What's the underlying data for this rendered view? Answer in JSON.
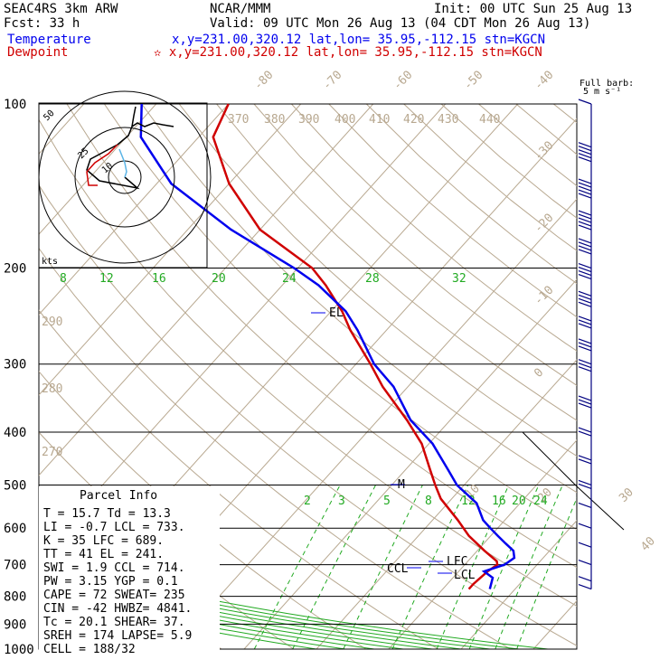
{
  "header": {
    "model": "SEAC4RS  3km ARW",
    "org": "NCAR/MMM",
    "init": "Init: 00 UTC Sun 25 Aug 13",
    "fcst": "Fcst:   33 h",
    "valid": "Valid: 09 UTC Mon 26 Aug 13 (04 CDT Mon 26 Aug 13)",
    "temp_label": "Temperature",
    "temp_loc": "x,y=231.00,320.12   lat,lon= 35.95,-112.15  stn=KGCN",
    "dew_label": "Dewpoint",
    "dew_loc": "✫ x,y=231.00,320.12   lat,lon= 35.95,-112.15  stn=KGCN"
  },
  "colors": {
    "temperature": "#d00000",
    "dewpoint": "#0000ee",
    "blue_text": "#0000ee",
    "red_text": "#d00000",
    "isotherm": "#b8a890",
    "mixing_ratio": "#22aa22",
    "barb": "#000080"
  },
  "barb_key": {
    "title": "Full barb:",
    "units": "5 m s⁻¹"
  },
  "hodograph": {
    "rings": [
      "10",
      "25",
      "50"
    ],
    "units": "kts"
  },
  "parcel_info": {
    "title": "Parcel Info",
    "rows": [
      "T  =    15.7 Td =  13.3",
      "LI =    -0.7 LCL =  733.",
      "K  =      35 LFC =  689.",
      "TT =      41 EL  =  241.",
      "SWI =    1.9 CCL =  714.",
      "PW =    3.15 YGP =   0.1",
      "CAPE =    72 SWEAT=  235",
      "CIN =    -42 HWBZ= 4841.",
      "Tc =    20.1 SHEAR=  37.",
      "SREH =   174 LAPSE=  5.9",
      "CELL = 188/32"
    ]
  },
  "chart_data": {
    "type": "line",
    "title": "",
    "ylabel": "",
    "xlabel": "",
    "pressure_levels": [
      "100",
      "200",
      "300",
      "400",
      "500",
      "600",
      "700",
      "800",
      "900",
      "1000"
    ],
    "isotherm_labels": [
      "-80",
      "-70",
      "-60",
      "-50",
      "-40",
      "-30",
      "-20",
      "-10",
      "0",
      "10",
      "20",
      "30",
      "40"
    ],
    "theta_labels": [
      "370",
      "380",
      "390",
      "400",
      "410",
      "420",
      "430",
      "440",
      "290",
      "280",
      "270"
    ],
    "mixing_ratio_labels_upper": [
      "8",
      "12",
      "16",
      "20",
      "24",
      "28",
      "32"
    ],
    "mixing_ratio_labels_lower": [
      "2",
      "3",
      "5",
      "8",
      "12",
      "16",
      "20",
      "24"
    ],
    "level_markers": [
      "EL",
      "LFC",
      "CCL",
      "LCL",
      "M"
    ],
    "series": [
      {
        "name": "Temperature",
        "pressure": [
          776,
          760,
          720,
          700,
          690,
          660,
          620,
          580,
          530,
          500,
          470,
          420,
          380,
          330,
          300,
          260,
          240,
          215,
          200,
          170,
          140,
          115,
          100
        ],
        "values": [
          13.6,
          13.6,
          14.0,
          14.5,
          14.0,
          11.0,
          7.0,
          3.5,
          -1.5,
          -4.0,
          -6.5,
          -11.0,
          -16.0,
          -23.5,
          -28.0,
          -35.0,
          -38.5,
          -44.0,
          -48.0,
          -60.0,
          -70.0,
          -78.0,
          -80.0
        ]
      },
      {
        "name": "Dewpoint",
        "pressure": [
          776,
          740,
          720,
          700,
          680,
          660,
          640,
          620,
          600,
          580,
          540,
          500,
          470,
          420,
          380,
          330,
          300,
          260,
          240,
          215,
          200,
          170,
          140,
          115,
          100
        ],
        "values": [
          16.5,
          15.5,
          13.5,
          15.5,
          16.0,
          15.0,
          13.0,
          11.0,
          9.0,
          7.0,
          4.0,
          -1.0,
          -4.0,
          -9.5,
          -15.5,
          -22.0,
          -27.5,
          -34.0,
          -38.0,
          -45.0,
          -50.5,
          -64.0,
          -78.0,
          -88.0,
          -92.0
        ]
      }
    ],
    "wind_barbs": [
      {
        "pressure": 100,
        "speed_kt": 5
      },
      {
        "pressure": 120,
        "speed_kt": 25
      },
      {
        "pressure": 140,
        "speed_kt": 25
      },
      {
        "pressure": 160,
        "speed_kt": 25
      },
      {
        "pressure": 180,
        "speed_kt": 20
      },
      {
        "pressure": 200,
        "speed_kt": 20
      },
      {
        "pressure": 225,
        "speed_kt": 20
      },
      {
        "pressure": 250,
        "speed_kt": 15
      },
      {
        "pressure": 275,
        "speed_kt": 15
      },
      {
        "pressure": 300,
        "speed_kt": 15
      },
      {
        "pressure": 350,
        "speed_kt": 15
      },
      {
        "pressure": 400,
        "speed_kt": 10
      },
      {
        "pressure": 450,
        "speed_kt": 10
      },
      {
        "pressure": 500,
        "speed_kt": 10
      },
      {
        "pressure": 550,
        "speed_kt": 5
      },
      {
        "pressure": 600,
        "speed_kt": 5
      },
      {
        "pressure": 650,
        "speed_kt": 5
      },
      {
        "pressure": 700,
        "speed_kt": 5
      },
      {
        "pressure": 750,
        "speed_kt": 5
      },
      {
        "pressure": 776,
        "speed_kt": 5
      }
    ],
    "grid": true,
    "log_pressure_axis": true
  }
}
